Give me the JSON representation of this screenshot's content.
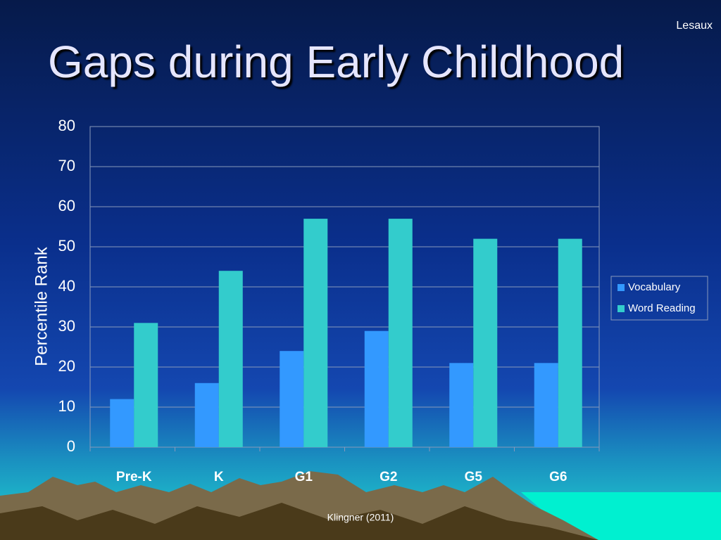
{
  "chart_data": {
    "type": "bar",
    "title": "Gaps during Early Childhood",
    "author_note": "Lesaux",
    "source": "Klingner (2011)",
    "y_label": "Percentile Rank",
    "categories": [
      "Pre-K",
      "K",
      "G1",
      "G2",
      "G5",
      "G6"
    ],
    "series": [
      {
        "name": "Vocabulary",
        "color": "#3399ff",
        "values": [
          12,
          16,
          24,
          29,
          21,
          21
        ]
      },
      {
        "name": "Word Reading",
        "color": "#33cccc",
        "values": [
          31,
          44,
          57,
          57,
          52,
          52
        ]
      }
    ],
    "ylim": [
      0,
      80
    ],
    "yticks": [
      0,
      10,
      20,
      30,
      40,
      50,
      60,
      70,
      80
    ],
    "grid": true,
    "legend": "right"
  }
}
